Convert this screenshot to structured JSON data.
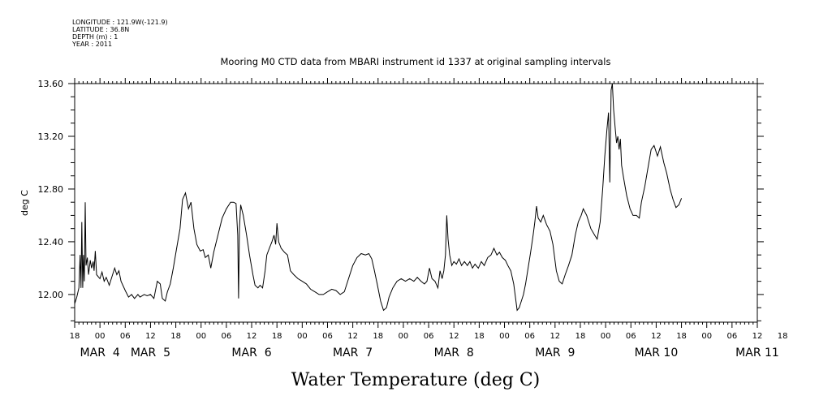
{
  "header": {
    "meta_lines": [
      "LONGITUDE : 121.9W(-121.9)",
      "LATITUDE : 36.8N",
      "DEPTH (m) : 1",
      "YEAR : 2011"
    ]
  },
  "chart_data": {
    "type": "line",
    "title": "Mooring M0 CTD data from MBARI instrument id 1337 at original sampling intervals",
    "xlabel": "Water Temperature (deg C)",
    "ylabel": "deg C",
    "ylim": [
      11.79,
      13.6
    ],
    "yticks": [
      12.0,
      12.4,
      12.8,
      13.2,
      13.6
    ],
    "ytick_labels": [
      "12.00",
      "12.40",
      "12.80",
      "13.20",
      "13.60"
    ],
    "xlim_hours": [
      0,
      162
    ],
    "hour_tick_labels": [
      "18",
      "00",
      "06",
      "12",
      "18",
      "00",
      "06",
      "12",
      "18",
      "00",
      "06",
      "12",
      "18",
      "00",
      "06",
      "12",
      "18",
      "00",
      "06",
      "12",
      "18",
      "00",
      "06",
      "12",
      "18",
      "00",
      "06",
      "12",
      "18"
    ],
    "day_labels": [
      {
        "text": "MAR  4",
        "hour": 6
      },
      {
        "text": "MAR  5",
        "hour": 18
      },
      {
        "text": "MAR  6",
        "hour": 42
      },
      {
        "text": "MAR  7",
        "hour": 66
      },
      {
        "text": "MAR  8",
        "hour": 90
      },
      {
        "text": "MAR  9",
        "hour": 114
      },
      {
        "text": "MAR 10",
        "hour": 138
      },
      {
        "text": "MAR 11",
        "hour": 162
      }
    ],
    "grid": false,
    "series": [
      {
        "values": [
          [
            0,
            11.93
          ],
          [
            0.5,
            11.98
          ],
          [
            1,
            12.05
          ],
          [
            1.3,
            12.3
          ],
          [
            1.5,
            12.05
          ],
          [
            1.7,
            12.55
          ],
          [
            1.9,
            12.05
          ],
          [
            2.1,
            12.3
          ],
          [
            2.3,
            12.1
          ],
          [
            2.5,
            12.7
          ],
          [
            2.7,
            12.22
          ],
          [
            3,
            12.28
          ],
          [
            3.3,
            12.15
          ],
          [
            3.7,
            12.26
          ],
          [
            4,
            12.2
          ],
          [
            4.4,
            12.25
          ],
          [
            4.6,
            12.18
          ],
          [
            4.9,
            12.33
          ],
          [
            5.2,
            12.15
          ],
          [
            6,
            12.12
          ],
          [
            6.5,
            12.17
          ],
          [
            7,
            12.1
          ],
          [
            7.5,
            12.13
          ],
          [
            8.2,
            12.07
          ],
          [
            9,
            12.15
          ],
          [
            9.5,
            12.2
          ],
          [
            10,
            12.15
          ],
          [
            10.5,
            12.18
          ],
          [
            11,
            12.1
          ],
          [
            12,
            12.03
          ],
          [
            12.8,
            11.98
          ],
          [
            13.5,
            12.0
          ],
          [
            14.2,
            11.97
          ],
          [
            15,
            12.0
          ],
          [
            15.5,
            11.98
          ],
          [
            16.5,
            12.0
          ],
          [
            17.2,
            11.99
          ],
          [
            18,
            12.0
          ],
          [
            18.8,
            11.97
          ],
          [
            19.6,
            12.1
          ],
          [
            20.3,
            12.08
          ],
          [
            20.8,
            11.97
          ],
          [
            21.5,
            11.95
          ],
          [
            22,
            12.02
          ],
          [
            22.7,
            12.08
          ],
          [
            23.4,
            12.2
          ],
          [
            24.2,
            12.35
          ],
          [
            25,
            12.5
          ],
          [
            25.6,
            12.72
          ],
          [
            26.3,
            12.77
          ],
          [
            27,
            12.65
          ],
          [
            27.6,
            12.7
          ],
          [
            28.3,
            12.5
          ],
          [
            29,
            12.38
          ],
          [
            29.8,
            12.33
          ],
          [
            30.5,
            12.34
          ],
          [
            31,
            12.28
          ],
          [
            31.7,
            12.3
          ],
          [
            32.3,
            12.2
          ],
          [
            33,
            12.32
          ],
          [
            34,
            12.45
          ],
          [
            35,
            12.58
          ],
          [
            36,
            12.65
          ],
          [
            37,
            12.7
          ],
          [
            37.7,
            12.7
          ],
          [
            38.3,
            12.69
          ],
          [
            38.7,
            12.45
          ],
          [
            38.9,
            11.97
          ],
          [
            39.1,
            12.5
          ],
          [
            39.4,
            12.68
          ],
          [
            40,
            12.6
          ],
          [
            40.8,
            12.45
          ],
          [
            41.5,
            12.3
          ],
          [
            42.3,
            12.15
          ],
          [
            42.8,
            12.07
          ],
          [
            43.5,
            12.05
          ],
          [
            44,
            12.07
          ],
          [
            44.6,
            12.05
          ],
          [
            45.2,
            12.18
          ],
          [
            45.6,
            12.3
          ],
          [
            46.2,
            12.35
          ],
          [
            46.8,
            12.4
          ],
          [
            47.3,
            12.45
          ],
          [
            47.7,
            12.38
          ],
          [
            48,
            12.54
          ],
          [
            48.4,
            12.4
          ],
          [
            49,
            12.35
          ],
          [
            49.8,
            12.32
          ],
          [
            50.5,
            12.3
          ],
          [
            51.2,
            12.18
          ],
          [
            52,
            12.15
          ],
          [
            53,
            12.12
          ],
          [
            54,
            12.1
          ],
          [
            55,
            12.08
          ],
          [
            56,
            12.04
          ],
          [
            57,
            12.02
          ],
          [
            58,
            12.0
          ],
          [
            59,
            12.0
          ],
          [
            60,
            12.02
          ],
          [
            61,
            12.04
          ],
          [
            62,
            12.03
          ],
          [
            63,
            12.0
          ],
          [
            64,
            12.02
          ],
          [
            65,
            12.12
          ],
          [
            66,
            12.22
          ],
          [
            67,
            12.28
          ],
          [
            68,
            12.31
          ],
          [
            69,
            12.3
          ],
          [
            69.8,
            12.31
          ],
          [
            70.5,
            12.27
          ],
          [
            71,
            12.2
          ],
          [
            71.8,
            12.08
          ],
          [
            72.6,
            11.95
          ],
          [
            73.3,
            11.88
          ],
          [
            74,
            11.9
          ],
          [
            74.6,
            11.98
          ],
          [
            75.5,
            12.05
          ],
          [
            76.5,
            12.1
          ],
          [
            77.5,
            12.12
          ],
          [
            78.5,
            12.1
          ],
          [
            79.5,
            12.12
          ],
          [
            80.5,
            12.1
          ],
          [
            81.3,
            12.13
          ],
          [
            82.2,
            12.1
          ],
          [
            83,
            12.08
          ],
          [
            83.6,
            12.1
          ],
          [
            84.2,
            12.2
          ],
          [
            84.8,
            12.12
          ],
          [
            85.5,
            12.1
          ],
          [
            86.2,
            12.05
          ],
          [
            86.7,
            12.18
          ],
          [
            87.2,
            12.12
          ],
          [
            87.6,
            12.18
          ],
          [
            88,
            12.3
          ],
          [
            88.3,
            12.6
          ],
          [
            88.6,
            12.42
          ],
          [
            89,
            12.3
          ],
          [
            89.5,
            12.22
          ],
          [
            90,
            12.25
          ],
          [
            90.6,
            12.23
          ],
          [
            91.2,
            12.27
          ],
          [
            91.8,
            12.22
          ],
          [
            92.5,
            12.25
          ],
          [
            93.2,
            12.22
          ],
          [
            93.8,
            12.25
          ],
          [
            94.4,
            12.2
          ],
          [
            95,
            12.23
          ],
          [
            95.8,
            12.2
          ],
          [
            96.5,
            12.25
          ],
          [
            97.2,
            12.22
          ],
          [
            98,
            12.28
          ],
          [
            98.8,
            12.3
          ],
          [
            99.5,
            12.35
          ],
          [
            100.2,
            12.3
          ],
          [
            100.8,
            12.32
          ],
          [
            101.5,
            12.28
          ],
          [
            102.2,
            12.26
          ],
          [
            102.8,
            12.22
          ],
          [
            103.5,
            12.18
          ],
          [
            104.2,
            12.08
          ],
          [
            104.6,
            11.98
          ],
          [
            105,
            11.88
          ],
          [
            105.5,
            11.9
          ],
          [
            106,
            11.95
          ],
          [
            106.5,
            12.0
          ],
          [
            107,
            12.08
          ],
          [
            107.6,
            12.2
          ],
          [
            108.2,
            12.32
          ],
          [
            108.8,
            12.45
          ],
          [
            109.2,
            12.55
          ],
          [
            109.6,
            12.67
          ],
          [
            110,
            12.58
          ],
          [
            110.6,
            12.55
          ],
          [
            111.2,
            12.6
          ],
          [
            112,
            12.53
          ],
          [
            112.8,
            12.48
          ],
          [
            113.5,
            12.38
          ],
          [
            114.3,
            12.18
          ],
          [
            115,
            12.1
          ],
          [
            115.7,
            12.08
          ],
          [
            116.4,
            12.15
          ],
          [
            117.2,
            12.22
          ],
          [
            118,
            12.3
          ],
          [
            118.8,
            12.45
          ],
          [
            119.5,
            12.55
          ],
          [
            120.2,
            12.6
          ],
          [
            120.7,
            12.65
          ],
          [
            121.5,
            12.6
          ],
          [
            122.5,
            12.5
          ],
          [
            123.4,
            12.45
          ],
          [
            124,
            12.42
          ],
          [
            124.7,
            12.55
          ],
          [
            125.3,
            12.8
          ],
          [
            125.8,
            13.05
          ],
          [
            126.3,
            13.25
          ],
          [
            126.7,
            13.38
          ],
          [
            127,
            12.85
          ],
          [
            127.3,
            13.55
          ],
          [
            127.6,
            13.6
          ],
          [
            127.9,
            13.4
          ],
          [
            128.3,
            13.25
          ],
          [
            128.6,
            13.15
          ],
          [
            128.9,
            13.2
          ],
          [
            129.2,
            13.1
          ],
          [
            129.5,
            13.18
          ],
          [
            129.8,
            12.98
          ],
          [
            130.3,
            12.88
          ],
          [
            131,
            12.75
          ],
          [
            131.8,
            12.65
          ],
          [
            132.5,
            12.6
          ],
          [
            133.3,
            12.6
          ],
          [
            134,
            12.58
          ],
          [
            134.5,
            12.7
          ],
          [
            135.3,
            12.82
          ],
          [
            136,
            12.95
          ],
          [
            136.8,
            13.1
          ],
          [
            137.5,
            13.13
          ],
          [
            138.3,
            13.05
          ],
          [
            139,
            13.12
          ],
          [
            139.8,
            13.0
          ],
          [
            140.5,
            12.92
          ],
          [
            141.3,
            12.8
          ],
          [
            142,
            12.72
          ],
          [
            142.7,
            12.66
          ],
          [
            143.4,
            12.68
          ],
          [
            144,
            12.73
          ]
        ]
      }
    ]
  }
}
